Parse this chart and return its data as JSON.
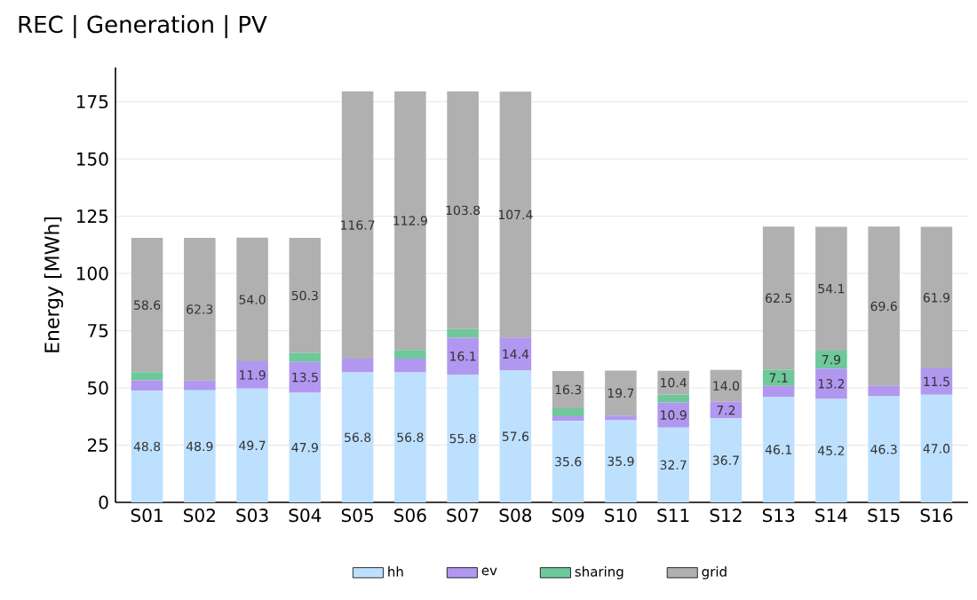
{
  "chart_data": {
    "type": "bar",
    "stacked": true,
    "title": "REC | Generation | PV",
    "ylabel": "Energy [MWh]",
    "categories": [
      "S01",
      "S02",
      "S03",
      "S04",
      "S05",
      "S06",
      "S07",
      "S08",
      "S09",
      "S10",
      "S11",
      "S12",
      "S13",
      "S14",
      "S15",
      "S16"
    ],
    "series": [
      {
        "name": "hh",
        "color": "#bde0fe",
        "values": [
          48.8,
          48.9,
          49.7,
          47.9,
          56.8,
          56.8,
          55.8,
          57.6,
          35.6,
          35.9,
          32.7,
          36.7,
          46.1,
          45.2,
          46.3,
          47.0
        ],
        "value_labels": [
          "48.8",
          "48.9",
          "49.7",
          "47.9",
          "56.8",
          "56.8",
          "55.8",
          "57.6",
          "35.6",
          "35.9",
          "32.7",
          "36.7",
          "46.1",
          "45.2",
          "46.3",
          "47.0"
        ]
      },
      {
        "name": "ev",
        "color": "#b197f0",
        "values": [
          4.5,
          4.3,
          11.9,
          13.5,
          6.0,
          6.0,
          16.1,
          14.4,
          2.0,
          2.0,
          10.9,
          7.2,
          4.8,
          13.2,
          4.6,
          11.5
        ],
        "value_labels": [
          null,
          null,
          "11.9",
          "13.5",
          null,
          null,
          "16.1",
          "14.4",
          null,
          null,
          "10.9",
          "7.2",
          null,
          "13.2",
          null,
          "11.5"
        ]
      },
      {
        "name": "sharing",
        "color": "#6fc89a",
        "values": [
          3.6,
          0,
          0,
          3.8,
          0,
          3.8,
          3.8,
          0,
          3.5,
          0,
          3.5,
          0,
          7.1,
          7.9,
          0,
          0
        ],
        "value_labels": [
          null,
          null,
          null,
          null,
          null,
          null,
          null,
          null,
          null,
          null,
          null,
          null,
          "7.1",
          "7.9",
          null,
          null
        ]
      },
      {
        "name": "grid",
        "color": "#b0b0b0",
        "values": [
          58.6,
          62.3,
          54.0,
          50.3,
          116.7,
          112.9,
          103.8,
          107.4,
          16.3,
          19.7,
          10.4,
          14.0,
          62.5,
          54.1,
          69.6,
          61.9
        ],
        "value_labels": [
          "58.6",
          "62.3",
          "54.0",
          "50.3",
          "116.7",
          "112.9",
          "103.8",
          "107.4",
          "16.3",
          "19.7",
          "10.4",
          "14.0",
          "62.5",
          "54.1",
          "69.6",
          "61.9"
        ]
      }
    ],
    "ylim": [
      0,
      190
    ],
    "yticks": [
      0,
      25,
      50,
      75,
      100,
      125,
      150,
      175
    ],
    "grid": "y",
    "legend": "bottom"
  }
}
